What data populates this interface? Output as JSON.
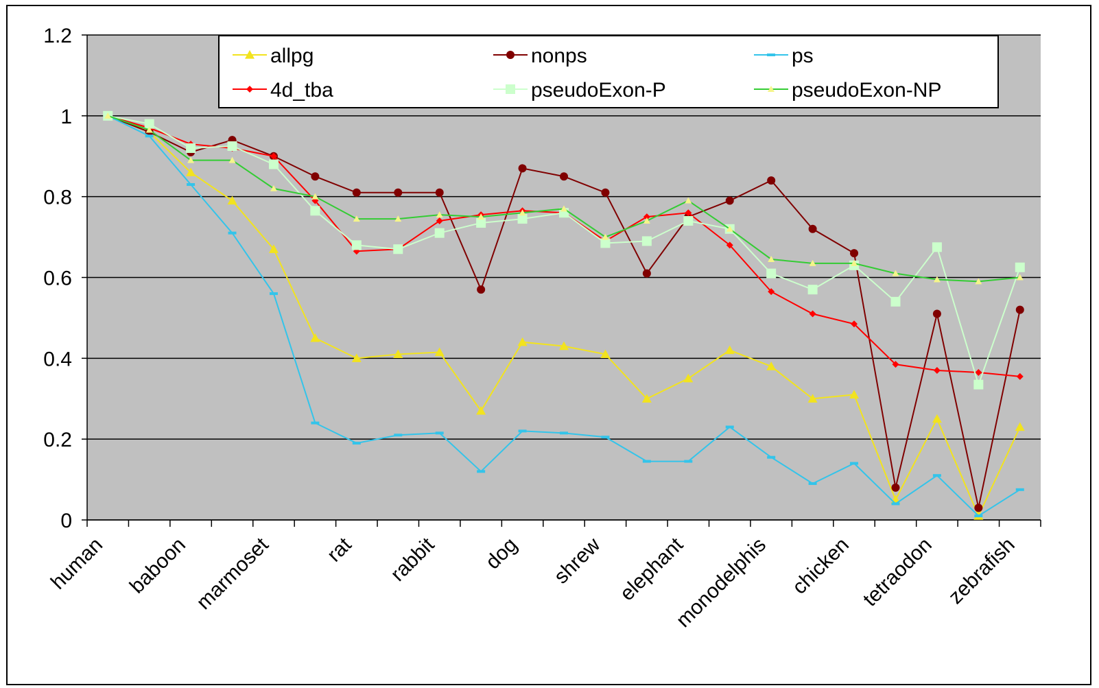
{
  "chart_data": {
    "type": "line",
    "categories": [
      "human",
      null,
      "baboon",
      null,
      "marmoset",
      null,
      "rat",
      null,
      "rabbit",
      null,
      "dog",
      null,
      "shrew",
      null,
      "elephant",
      null,
      "monodelphis",
      null,
      "chicken",
      null,
      "tetraodon",
      null,
      "zebrafish"
    ],
    "series": [
      {
        "name": "allpg",
        "color": "#f2e31e",
        "marker": "triangle",
        "values": [
          1,
          0.96,
          0.86,
          0.79,
          0.67,
          0.45,
          0.4,
          0.41,
          0.415,
          0.27,
          0.44,
          0.43,
          0.41,
          0.3,
          0.35,
          0.42,
          0.38,
          0.3,
          0.31,
          0.05,
          0.25,
          0.01,
          0.23
        ]
      },
      {
        "name": "nonps",
        "color": "#800000",
        "marker": "circle",
        "values": [
          1,
          0.96,
          0.91,
          0.94,
          0.9,
          0.85,
          0.81,
          0.81,
          0.81,
          0.57,
          0.87,
          0.85,
          0.81,
          0.61,
          0.75,
          0.79,
          0.84,
          0.72,
          0.66,
          0.08,
          0.51,
          0.03,
          0.52
        ]
      },
      {
        "name": "ps",
        "color": "#33c4ea",
        "marker": "dash",
        "values": [
          1,
          0.95,
          0.83,
          0.71,
          0.56,
          0.24,
          0.19,
          0.21,
          0.215,
          0.12,
          0.22,
          0.215,
          0.205,
          0.145,
          0.145,
          0.23,
          0.155,
          0.09,
          0.14,
          0.04,
          0.11,
          0.01,
          0.075
        ]
      },
      {
        "name": "4d_tba",
        "color": "#ff0000",
        "marker": "diamond",
        "values": [
          1,
          0.97,
          0.93,
          0.92,
          0.9,
          0.79,
          0.665,
          0.67,
          0.74,
          0.755,
          0.765,
          0.76,
          0.69,
          0.75,
          0.76,
          0.68,
          0.565,
          0.51,
          0.485,
          0.385,
          0.37,
          0.365,
          0.355
        ]
      },
      {
        "name": "pseudoExon-P",
        "color": "#ccffcc",
        "marker": "square",
        "values": [
          1,
          0.98,
          0.92,
          0.925,
          0.88,
          0.765,
          0.68,
          0.67,
          0.71,
          0.735,
          0.745,
          0.76,
          0.685,
          0.69,
          0.74,
          0.72,
          0.61,
          0.57,
          0.63,
          0.54,
          0.675,
          0.335,
          0.625
        ]
      },
      {
        "name": "pseudoExon-NP",
        "color": "#33cc33",
        "marker": "triangle-light",
        "values": [
          1,
          0.965,
          0.89,
          0.89,
          0.82,
          0.8,
          0.745,
          0.745,
          0.755,
          0.75,
          0.76,
          0.77,
          0.7,
          0.74,
          0.79,
          0.72,
          0.645,
          0.635,
          0.635,
          0.61,
          0.595,
          0.59,
          0.6
        ]
      }
    ],
    "ylim": [
      0,
      1.2
    ],
    "yticks": [
      0,
      0.2,
      0.4,
      0.6,
      0.8,
      1,
      1.2
    ],
    "grid": true,
    "legend": "top"
  }
}
